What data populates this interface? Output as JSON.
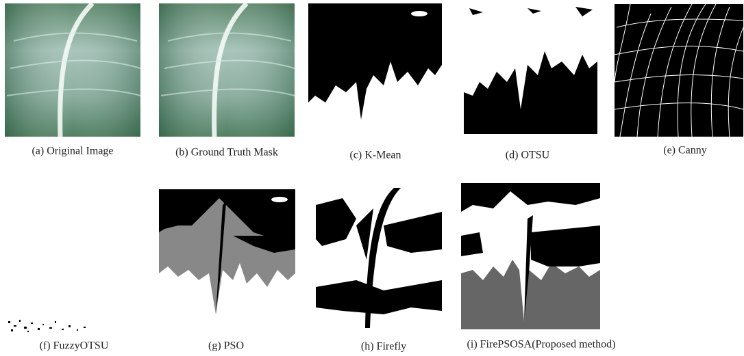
{
  "figure": {
    "panels": [
      {
        "caption": "(a) Original Image"
      },
      {
        "caption": "(b) Ground Truth Mask"
      },
      {
        "caption": "(c) K-Mean"
      },
      {
        "caption": "(d) OTSU"
      },
      {
        "caption": "(e) Canny"
      },
      {
        "caption": "(f) FuzzyOTSU"
      },
      {
        "caption": "(g) PSO"
      },
      {
        "caption": "(h) Firefly"
      },
      {
        "caption": "(i) FirePSOSA(Proposed method)"
      }
    ]
  }
}
